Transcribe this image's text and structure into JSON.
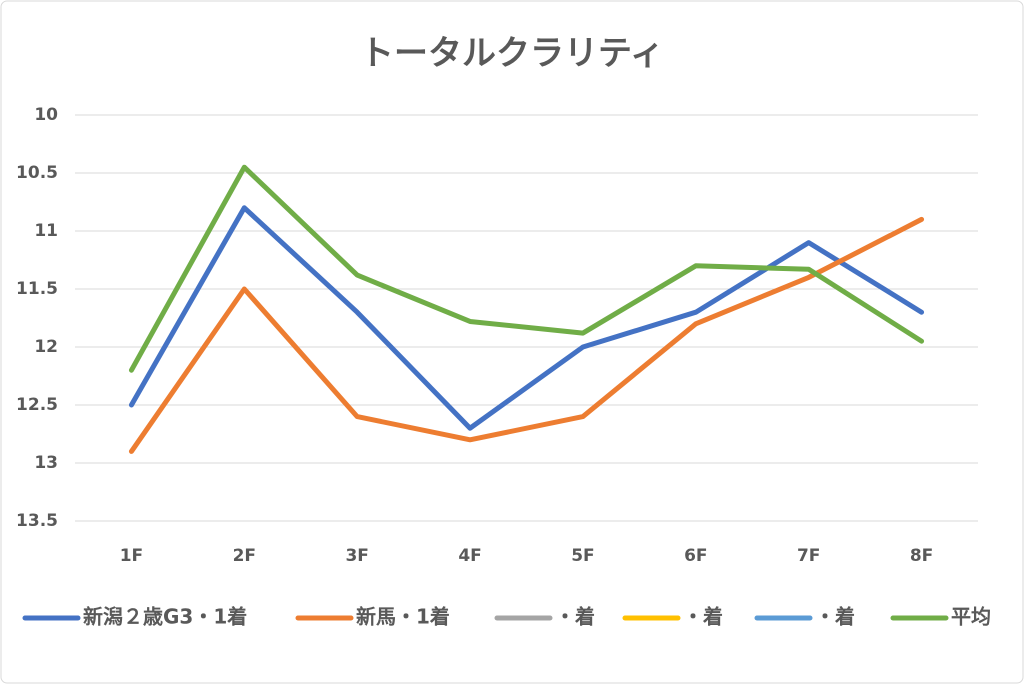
{
  "chart_data": {
    "type": "line",
    "title": "トータルクラリティ",
    "categories": [
      "1F",
      "2F",
      "3F",
      "4F",
      "5F",
      "6F",
      "7F",
      "8F"
    ],
    "series": [
      {
        "name": "新潟２歳G3・1着",
        "color": "#4472c4",
        "values": [
          12.5,
          10.8,
          11.7,
          12.7,
          12.0,
          11.7,
          11.1,
          11.7
        ]
      },
      {
        "name": "新馬・1着",
        "color": "#ed7d31",
        "values": [
          12.9,
          11.5,
          12.6,
          12.8,
          12.6,
          11.8,
          11.4,
          10.9
        ]
      },
      {
        "name": "・着",
        "color": "#a5a5a5",
        "values": [
          null,
          null,
          null,
          null,
          null,
          null,
          null,
          null
        ]
      },
      {
        "name": "・着",
        "color": "#ffc000",
        "values": [
          null,
          null,
          null,
          null,
          null,
          null,
          null,
          null
        ]
      },
      {
        "name": "・着",
        "color": "#5b9bd5",
        "values": [
          null,
          null,
          null,
          null,
          null,
          null,
          null,
          null
        ]
      },
      {
        "name": "平均",
        "color": "#70ad47",
        "values": [
          12.2,
          10.45,
          11.38,
          11.78,
          11.88,
          11.3,
          11.33,
          11.95
        ]
      }
    ],
    "ylim": [
      10,
      13.5
    ],
    "y_reversed": true,
    "yticks": [
      10,
      10.5,
      11,
      11.5,
      12,
      12.5,
      13,
      13.5
    ],
    "grid": true,
    "legend": "bottom"
  }
}
